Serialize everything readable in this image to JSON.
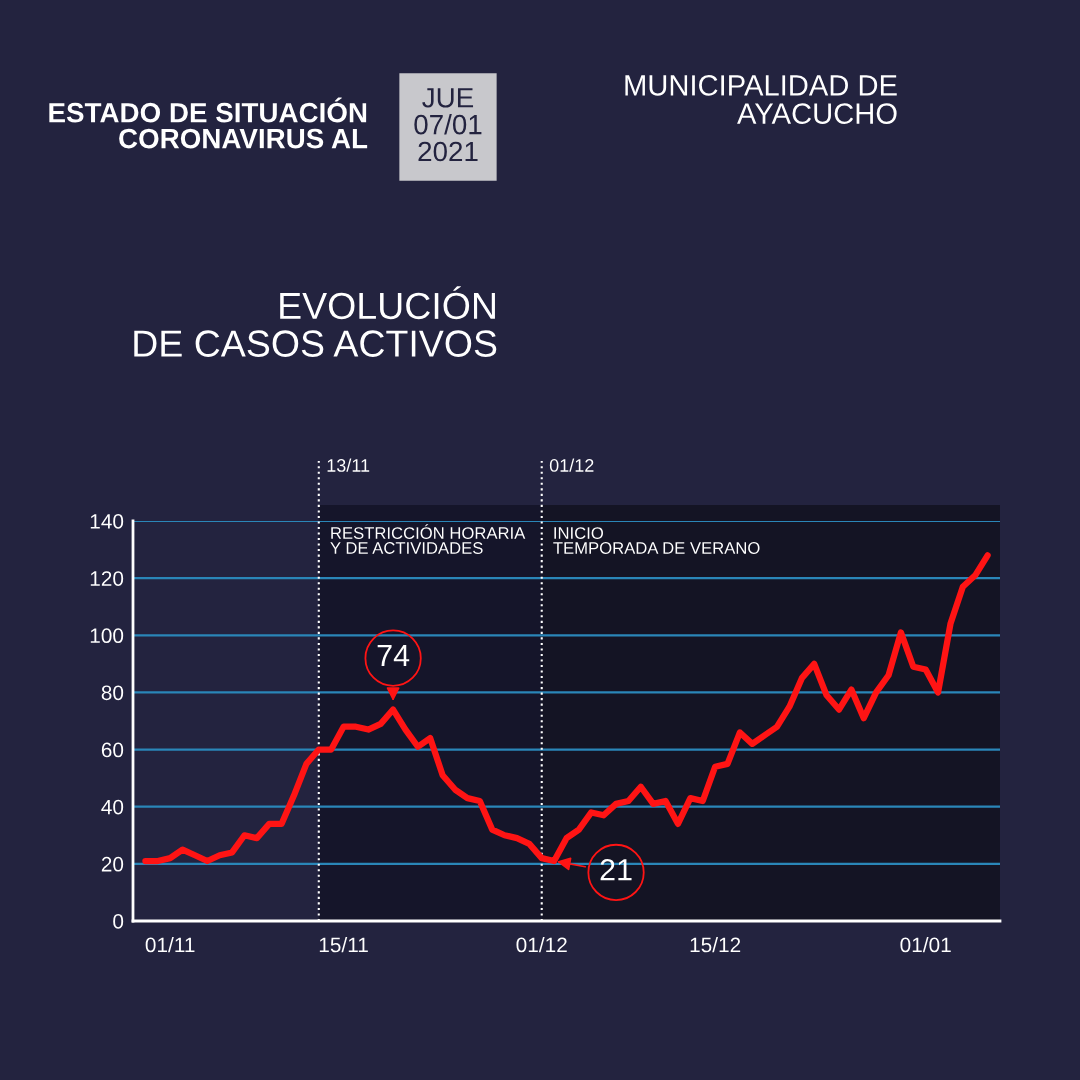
{
  "chart_data": {
    "type": "line",
    "title": "ESTADO DE SITUACIÓN\nCORONAVIRUS AL",
    "subtitle": "EVOLUCIÓN\nDE CASOS ACTIVOS",
    "x": [
      "2020-10-30",
      "2020-10-31",
      "2020-11-01",
      "2020-11-02",
      "2020-11-03",
      "2020-11-04",
      "2020-11-05",
      "2020-11-06",
      "2020-11-07",
      "2020-11-08",
      "2020-11-09",
      "2020-11-10",
      "2020-11-11",
      "2020-11-12",
      "2020-11-13",
      "2020-11-14",
      "2020-11-15",
      "2020-11-16",
      "2020-11-17",
      "2020-11-18",
      "2020-11-19",
      "2020-11-20",
      "2020-11-21",
      "2020-11-22",
      "2020-11-23",
      "2020-11-24",
      "2020-11-25",
      "2020-11-26",
      "2020-11-27",
      "2020-11-28",
      "2020-11-29",
      "2020-11-30",
      "2020-12-01",
      "2020-12-02",
      "2020-12-03",
      "2020-12-04",
      "2020-12-05",
      "2020-12-06",
      "2020-12-07",
      "2020-12-08",
      "2020-12-09",
      "2020-12-10",
      "2020-12-11",
      "2020-12-12",
      "2020-12-13",
      "2020-12-14",
      "2020-12-15",
      "2020-12-16",
      "2020-12-17",
      "2020-12-18",
      "2020-12-19",
      "2020-12-20",
      "2020-12-21",
      "2020-12-22",
      "2020-12-23",
      "2020-12-24",
      "2020-12-25",
      "2020-12-26",
      "2020-12-27",
      "2020-12-28",
      "2020-12-29",
      "2020-12-30",
      "2020-12-31",
      "2021-01-01",
      "2021-01-02",
      "2021-01-03",
      "2021-01-04",
      "2021-01-05",
      "2021-01-06"
    ],
    "series": [
      {
        "color": "#ff1414",
        "values": [
          21,
          21,
          22,
          25,
          23,
          21,
          23,
          24,
          30,
          29,
          34,
          34,
          44,
          55,
          60,
          60,
          68,
          68,
          67,
          69,
          74,
          67,
          61,
          64,
          51,
          46,
          43,
          42,
          32,
          30,
          29,
          27,
          22,
          21,
          29,
          32,
          38,
          37,
          41,
          42,
          47,
          41,
          42,
          34,
          43,
          42,
          54,
          55,
          66,
          62,
          65,
          68,
          75,
          85,
          90,
          79,
          74,
          81,
          71,
          80,
          86,
          101,
          89,
          88,
          80,
          104,
          117,
          121,
          128
        ]
      }
    ],
    "xlim": [
      "2020-10-29",
      "2021-01-07"
    ],
    "xticks": [
      {
        "value": "2020-11-01",
        "label": "01/11"
      },
      {
        "value": "2020-11-15",
        "label": "15/11"
      },
      {
        "value": "2020-12-01",
        "label": "01/12"
      },
      {
        "value": "2020-12-15",
        "label": "15/12"
      },
      {
        "value": "2021-01-01",
        "label": "01/01"
      }
    ],
    "ylim": [
      0,
      140
    ],
    "yticks": [
      0,
      20,
      40,
      60,
      80,
      100,
      120,
      140
    ],
    "grid": "y",
    "ref_lines": [
      {
        "axis": "x",
        "value": "2020-11-13",
        "label": "13/11",
        "line_style": "dotted",
        "color": "#ffffff"
      },
      {
        "axis": "x",
        "value": "2020-12-01",
        "label": "01/12",
        "line_style": "dotted",
        "color": "#ffffff"
      }
    ],
    "bands": [
      {
        "axis": "x",
        "from": "2020-11-13",
        "to": "2020-12-01",
        "label": "RESTRICCIÓN HORARIA\nY DE ACTIVIDADES",
        "color": "#15152a"
      },
      {
        "axis": "x",
        "from": "2020-12-01",
        "to": "2021-01-07",
        "label": "INICIO\nTEMPORADA DE VERANO",
        "color": "#141424"
      }
    ],
    "annotations": [
      {
        "text": "74",
        "x": "2020-11-19",
        "y": 74
      },
      {
        "text": "21",
        "x": "2020-12-02",
        "y": 21
      },
      "JUE\n07/01\n2021",
      "MUNICIPALIDAD DE\nAYACUCHO"
    ]
  }
}
